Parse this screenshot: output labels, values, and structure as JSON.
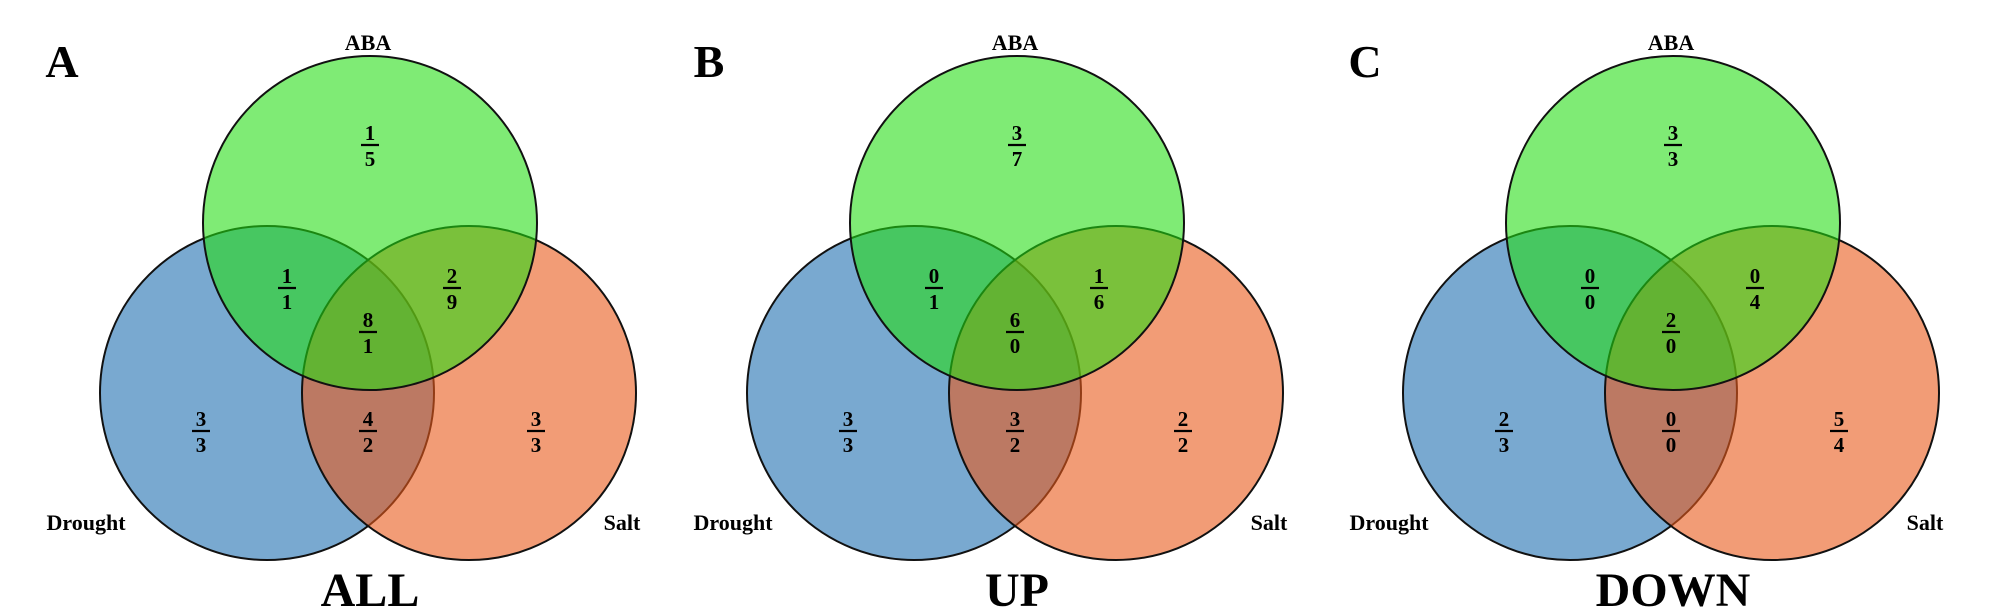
{
  "colors": {
    "aba": "#22dd11",
    "drought": "#1f6fb0",
    "salt": "#ea5a1b",
    "stroke": "#111111"
  },
  "panels": [
    {
      "letter": "A",
      "title": "ALL",
      "labels": {
        "aba": "ABA",
        "drought": "Drought",
        "salt": "Salt"
      },
      "regions": {
        "aba_only": [
          "1",
          "5"
        ],
        "aba_drought": [
          "1",
          "1"
        ],
        "aba_salt": [
          "2",
          "9"
        ],
        "center": [
          "8",
          "1"
        ],
        "drought_only": [
          "3",
          "3"
        ],
        "drought_salt": [
          "4",
          "2"
        ],
        "salt_only": [
          "3",
          "3"
        ]
      }
    },
    {
      "letter": "B",
      "title": "UP",
      "labels": {
        "aba": "ABA",
        "drought": "Drought",
        "salt": "Salt"
      },
      "regions": {
        "aba_only": [
          "3",
          "7"
        ],
        "aba_drought": [
          "0",
          "1"
        ],
        "aba_salt": [
          "1",
          "6"
        ],
        "center": [
          "6",
          "0"
        ],
        "drought_only": [
          "3",
          "3"
        ],
        "drought_salt": [
          "3",
          "2"
        ],
        "salt_only": [
          "2",
          "2"
        ]
      }
    },
    {
      "letter": "C",
      "title": "DOWN",
      "labels": {
        "aba": "ABA",
        "drought": "Drought",
        "salt": "Salt"
      },
      "regions": {
        "aba_only": [
          "3",
          "3"
        ],
        "aba_drought": [
          "0",
          "0"
        ],
        "aba_salt": [
          "0",
          "4"
        ],
        "center": [
          "2",
          "0"
        ],
        "drought_only": [
          "2",
          "3"
        ],
        "drought_salt": [
          "0",
          "0"
        ],
        "salt_only": [
          "5",
          "4"
        ]
      }
    }
  ]
}
